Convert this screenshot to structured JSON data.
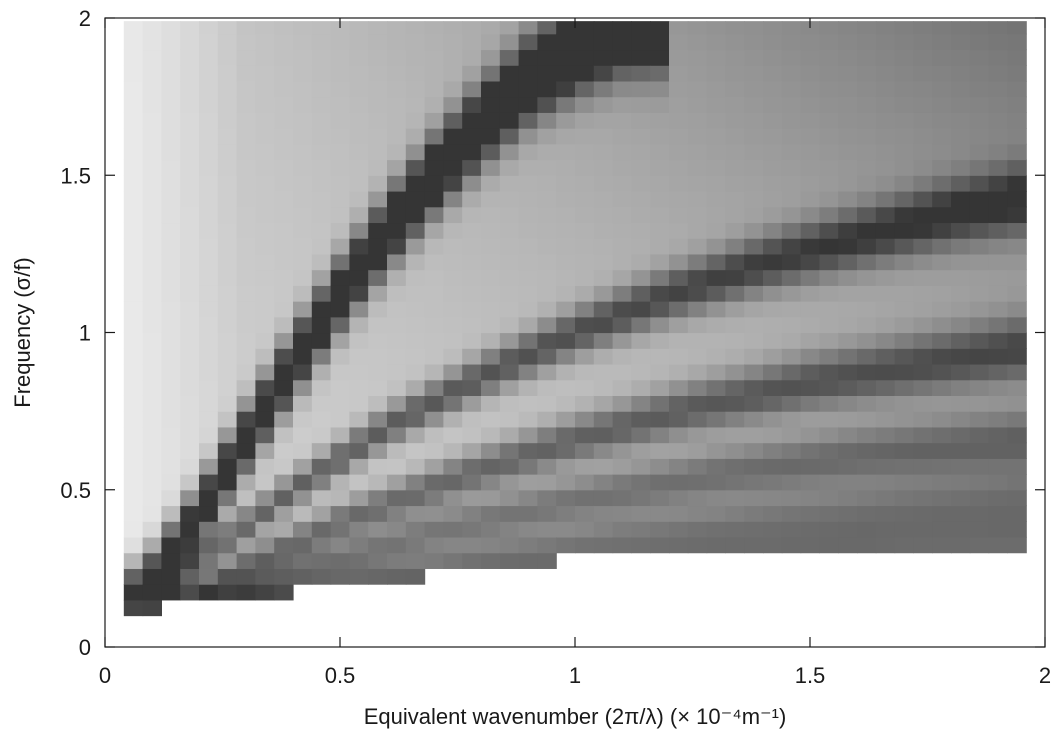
{
  "chart_data": {
    "type": "heatmap",
    "title": "",
    "xlabel": "Equivalent wavenumber (2π/λ) (× 10⁻⁴m⁻¹)",
    "ylabel": "Frequency (σ/f)",
    "xlim": [
      0,
      2
    ],
    "ylim": [
      0,
      2
    ],
    "x_ticks": [
      0,
      0.5,
      1,
      1.5,
      2
    ],
    "x_tick_labels": [
      "0",
      "0.5",
      "1",
      "1.5",
      "2"
    ],
    "y_ticks": [
      0,
      0.5,
      1,
      1.5,
      2
    ],
    "y_tick_labels": [
      "0",
      "0.5",
      "1",
      "1.5",
      "2"
    ],
    "colormap": "grayscale (white = low, dark = high power)",
    "grid": false,
    "data_extent": {
      "x": [
        0.04,
        1.96
      ],
      "y": [
        0.1,
        1.99
      ]
    },
    "cell_size": {
      "dx": 0.04,
      "dy": 0.05
    },
    "dispersion_ridges": [
      {
        "mode": 1,
        "points": [
          [
            0.04,
            0.14
          ],
          [
            0.1,
            0.22
          ],
          [
            0.2,
            0.42
          ],
          [
            0.3,
            0.66
          ],
          [
            0.4,
            0.9
          ],
          [
            0.5,
            1.12
          ],
          [
            0.6,
            1.32
          ],
          [
            0.7,
            1.5
          ],
          [
            0.8,
            1.66
          ],
          [
            0.9,
            1.8
          ],
          [
            1.0,
            1.9
          ],
          [
            1.1,
            1.97
          ],
          [
            1.2,
            1.99
          ]
        ],
        "strength": 0.92
      },
      {
        "mode": 2,
        "points": [
          [
            0.08,
            0.12
          ],
          [
            0.2,
            0.28
          ],
          [
            0.4,
            0.5
          ],
          [
            0.6,
            0.7
          ],
          [
            0.8,
            0.86
          ],
          [
            1.0,
            1.0
          ],
          [
            1.2,
            1.12
          ],
          [
            1.4,
            1.22
          ],
          [
            1.6,
            1.3
          ],
          [
            1.8,
            1.38
          ],
          [
            1.96,
            1.43
          ]
        ],
        "strength": 0.5
      },
      {
        "mode": 3,
        "points": [
          [
            0.12,
            0.12
          ],
          [
            0.3,
            0.26
          ],
          [
            0.5,
            0.4
          ],
          [
            0.75,
            0.54
          ],
          [
            1.0,
            0.66
          ],
          [
            1.25,
            0.76
          ],
          [
            1.5,
            0.84
          ],
          [
            1.75,
            0.9
          ],
          [
            1.96,
            0.95
          ]
        ],
        "strength": 0.45
      },
      {
        "mode": 4,
        "points": [
          [
            0.16,
            0.12
          ],
          [
            0.4,
            0.24
          ],
          [
            0.7,
            0.37
          ],
          [
            1.0,
            0.47
          ],
          [
            1.3,
            0.55
          ],
          [
            1.6,
            0.61
          ],
          [
            1.96,
            0.66
          ]
        ],
        "strength": 0.38
      },
      {
        "mode": 5,
        "points": [
          [
            0.2,
            0.11
          ],
          [
            0.5,
            0.2
          ],
          [
            0.8,
            0.28
          ],
          [
            1.1,
            0.35
          ],
          [
            1.4,
            0.4
          ],
          [
            1.7,
            0.44
          ],
          [
            1.96,
            0.47
          ]
        ],
        "strength": 0.32
      },
      {
        "mode": 6,
        "points": [
          [
            0.3,
            0.11
          ],
          [
            0.7,
            0.18
          ],
          [
            1.0,
            0.23
          ],
          [
            1.3,
            0.27
          ],
          [
            1.6,
            0.3
          ],
          [
            1.96,
            0.32
          ]
        ],
        "strength": 0.35
      }
    ],
    "background_shading": {
      "base": 0.2,
      "upper_right_peak": 0.45
    }
  }
}
